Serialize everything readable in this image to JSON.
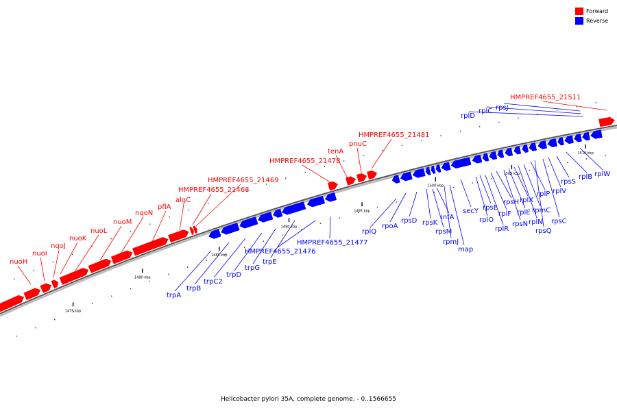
{
  "legend": {
    "forward_label": "Forward",
    "reverse_label": "Reverse",
    "forward_color": "#ff0000",
    "reverse_color": "#0000ff"
  },
  "caption": "Helicobacter pylori 35A, complete genome. - 0..1566655",
  "ticks": [
    "1475 kbp",
    "1480 kbp",
    "1485 kbp",
    "1490 kbp",
    "1495 kbp",
    "1500 kbp",
    "1505 kbp",
    "1510 kbp"
  ],
  "forward_genes": [
    "nuoH",
    "nuoI",
    "nqoJ",
    "nuoK",
    "nuoL",
    "nuoM",
    "nqoN",
    "pflA",
    "algC",
    "HMPREF4655_21468",
    "HMPREF4655_21469",
    "HMPREF4655_21478",
    "tenA",
    "pnuC",
    "HMPREF4655_21481",
    "HMPREF4655_21511"
  ],
  "reverse_genes": [
    "trpA",
    "trpB",
    "trpC2",
    "trpD",
    "trpG",
    "trpE",
    "HMPREF4655_21476",
    "HMPREF4655_21477",
    "rplQ",
    "rpoA",
    "rpsD",
    "rpsK",
    "rpsM",
    "infA",
    "rpmJ",
    "map",
    "secY",
    "rplO",
    "rpsE",
    "rplR",
    "rplF",
    "rpsH",
    "rpsN",
    "rplE",
    "rplX",
    "rplN",
    "rpmC",
    "rplP",
    "rpsQ",
    "rpsC",
    "rplV",
    "rpsS",
    "rplB",
    "rplW",
    "rplD",
    "rplC",
    "rpsJ"
  ]
}
